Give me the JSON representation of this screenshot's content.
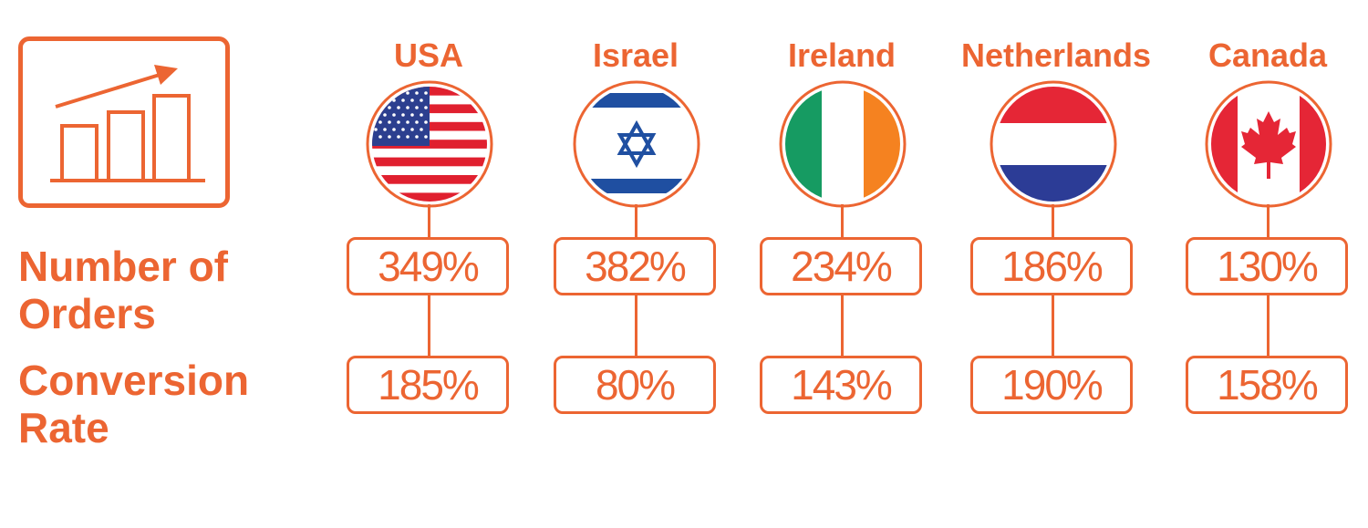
{
  "labels": {
    "orders": [
      "Number of",
      "Orders"
    ],
    "conversion": [
      "Conversion",
      "Rate"
    ]
  },
  "icon": "growth-chart-icon",
  "accent_color": "#ec6532",
  "countries": [
    {
      "name": "USA",
      "flag": "usa-flag-icon",
      "orders": "349%",
      "conversion": "185%"
    },
    {
      "name": "Israel",
      "flag": "israel-flag-icon",
      "orders": "382%",
      "conversion": "80%"
    },
    {
      "name": "Ireland",
      "flag": "ireland-flag-icon",
      "orders": "234%",
      "conversion": "143%"
    },
    {
      "name": "Netherlands",
      "flag": "netherlands-flag-icon",
      "orders": "186%",
      "conversion": "190%"
    },
    {
      "name": "Canada",
      "flag": "canada-flag-icon",
      "orders": "130%",
      "conversion": "158%"
    }
  ]
}
